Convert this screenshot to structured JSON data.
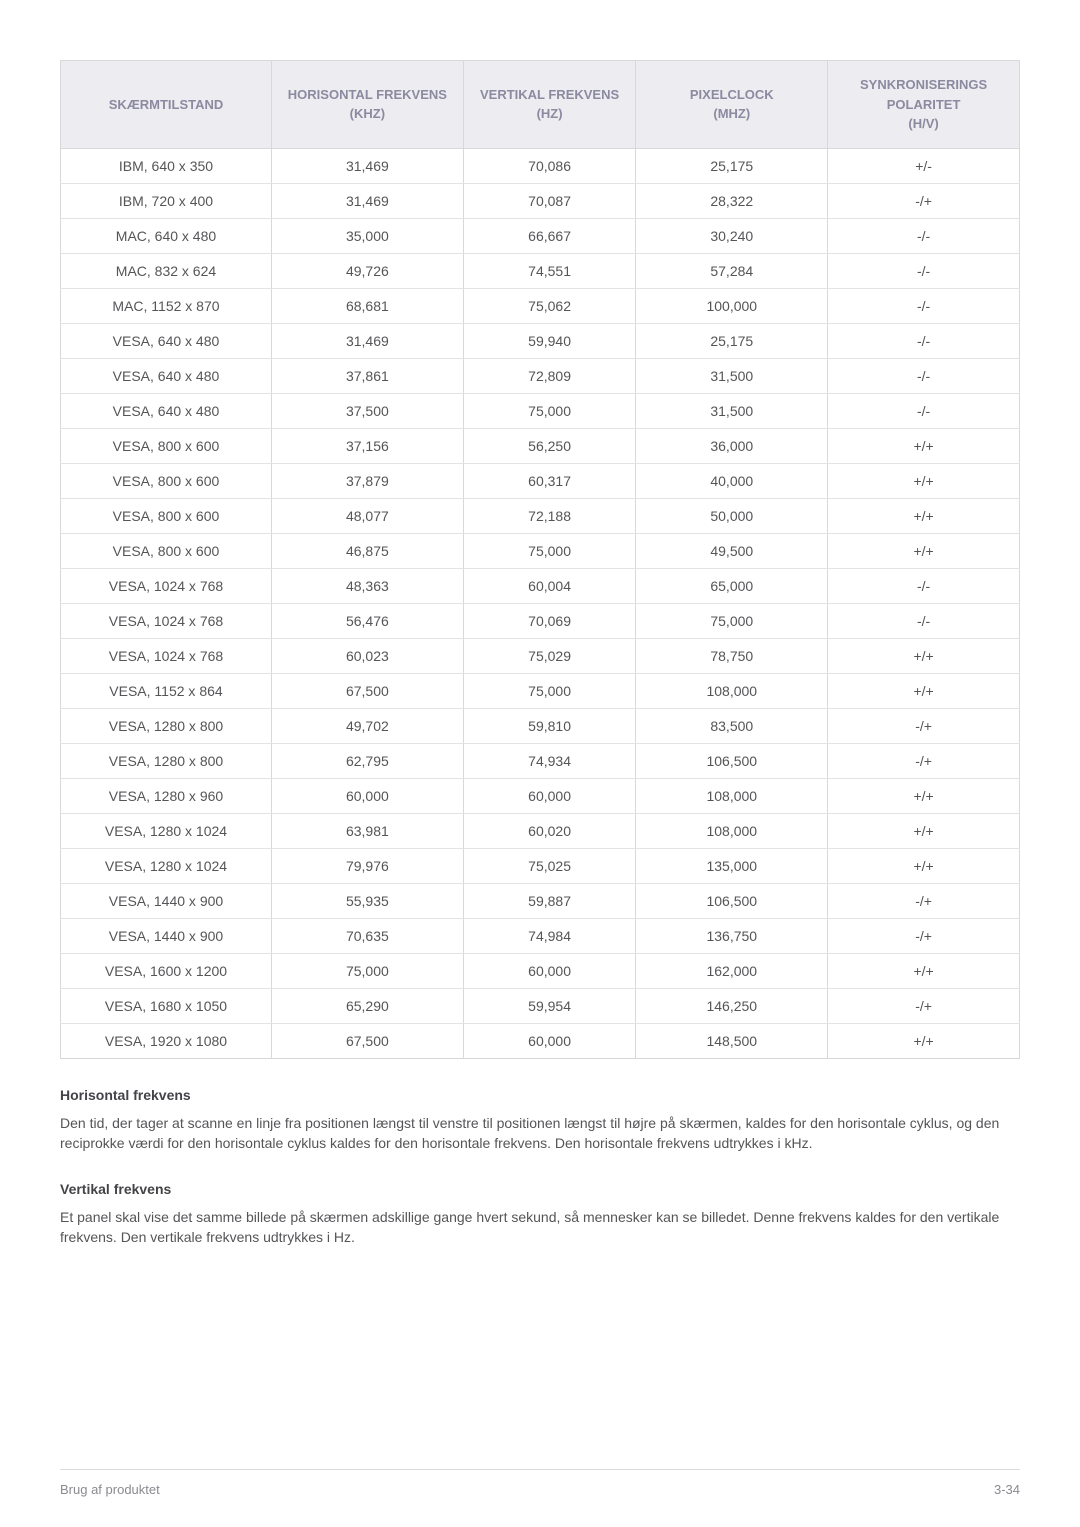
{
  "table": {
    "columns": [
      "SKÆRMTILSTAND",
      "HORISONTAL FREKVENS (KHZ)",
      "VERTIKAL FREKVENS (HZ)",
      "PIXELCLOCK (MHZ)",
      "SYNKRONISERINGS POLARITET (H/V)"
    ],
    "column_widths": [
      "22%",
      "20%",
      "18%",
      "20%",
      "20%"
    ],
    "rows": [
      [
        "IBM, 640 x 350",
        "31,469",
        "70,086",
        "25,175",
        "+/-"
      ],
      [
        "IBM, 720 x 400",
        "31,469",
        "70,087",
        "28,322",
        "-/+"
      ],
      [
        "MAC, 640 x 480",
        "35,000",
        "66,667",
        "30,240",
        "-/-"
      ],
      [
        "MAC, 832 x 624",
        "49,726",
        "74,551",
        "57,284",
        "-/-"
      ],
      [
        "MAC, 1152 x 870",
        "68,681",
        "75,062",
        "100,000",
        "-/-"
      ],
      [
        "VESA, 640 x 480",
        "31,469",
        "59,940",
        "25,175",
        "-/-"
      ],
      [
        "VESA, 640 x 480",
        "37,861",
        "72,809",
        "31,500",
        "-/-"
      ],
      [
        "VESA, 640 x 480",
        "37,500",
        "75,000",
        "31,500",
        "-/-"
      ],
      [
        "VESA, 800 x 600",
        "37,156",
        "56,250",
        "36,000",
        "+/+"
      ],
      [
        "VESA, 800 x 600",
        "37,879",
        "60,317",
        "40,000",
        "+/+"
      ],
      [
        "VESA, 800 x 600",
        "48,077",
        "72,188",
        "50,000",
        "+/+"
      ],
      [
        "VESA, 800 x 600",
        "46,875",
        "75,000",
        "49,500",
        "+/+"
      ],
      [
        "VESA, 1024 x 768",
        "48,363",
        "60,004",
        "65,000",
        "-/-"
      ],
      [
        "VESA, 1024 x 768",
        "56,476",
        "70,069",
        "75,000",
        "-/-"
      ],
      [
        "VESA, 1024 x 768",
        "60,023",
        "75,029",
        "78,750",
        "+/+"
      ],
      [
        "VESA, 1152 x 864",
        "67,500",
        "75,000",
        "108,000",
        "+/+"
      ],
      [
        "VESA, 1280 x 800",
        "49,702",
        "59,810",
        "83,500",
        "-/+"
      ],
      [
        "VESA, 1280 x 800",
        "62,795",
        "74,934",
        "106,500",
        "-/+"
      ],
      [
        "VESA, 1280 x 960",
        "60,000",
        "60,000",
        "108,000",
        "+/+"
      ],
      [
        "VESA, 1280 x 1024",
        "63,981",
        "60,020",
        "108,000",
        "+/+"
      ],
      [
        "VESA, 1280 x 1024",
        "79,976",
        "75,025",
        "135,000",
        "+/+"
      ],
      [
        "VESA, 1440 x 900",
        "55,935",
        "59,887",
        "106,500",
        "-/+"
      ],
      [
        "VESA, 1440 x 900",
        "70,635",
        "74,984",
        "136,750",
        "-/+"
      ],
      [
        "VESA, 1600 x 1200",
        "75,000",
        "60,000",
        "162,000",
        "+/+"
      ],
      [
        "VESA, 1680 x 1050",
        "65,290",
        "59,954",
        "146,250",
        "-/+"
      ],
      [
        "VESA, 1920 x 1080",
        "67,500",
        "60,000",
        "148,500",
        "+/+"
      ]
    ]
  },
  "sections": [
    {
      "heading": "Horisontal frekvens",
      "text": "Den tid, der tager at scanne en linje fra positionen længst til venstre til positionen længst til højre på skærmen, kaldes for den horisontale cyklus, og den reciprokke værdi for den horisontale cyklus kaldes for den horisontale frekvens. Den horisontale frekvens udtrykkes i kHz."
    },
    {
      "heading": "Vertikal frekvens",
      "text": "Et panel skal vise det samme billede på skærmen adskillige gange hvert sekund, så mennesker kan se billedet. Denne frekvens kaldes for den vertikale frekvens. Den vertikale frekvens udtrykkes i Hz."
    }
  ],
  "footer": {
    "left": "Brug af produktet",
    "right": "3-34"
  },
  "colors": {
    "header_bg": "#edecf0",
    "header_text": "#8b8aa0",
    "border": "#d8d8db",
    "row_border": "#e3e3e6",
    "body_text": "#555558",
    "footer_text": "#8a8a90"
  }
}
